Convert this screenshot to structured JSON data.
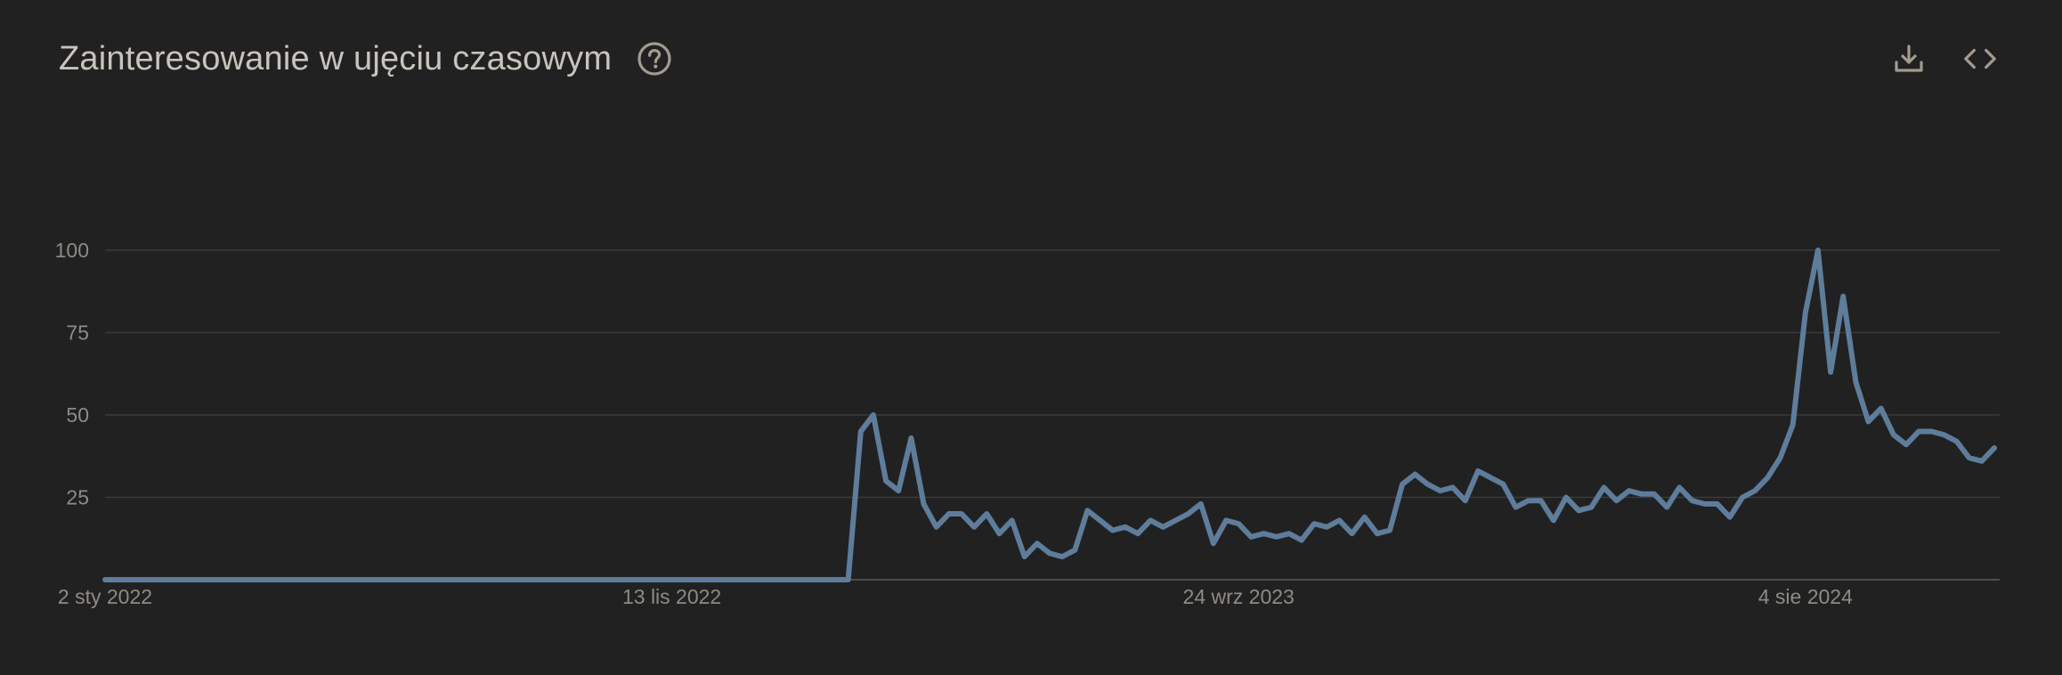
{
  "header": {
    "title": "Zainteresowanie w ujęciu czasowym",
    "help_icon": "help-circle-icon",
    "download_icon": "download-icon",
    "embed_icon": "code-icon"
  },
  "colors": {
    "background": "#212121",
    "line": "#5e7d9b",
    "grid": "#3a3a3a",
    "text": "#c8c3bc",
    "axis_text": "#8f8a84"
  },
  "chart_data": {
    "type": "line",
    "title": "Zainteresowanie w ujęciu czasowym",
    "xlabel": "",
    "ylabel": "",
    "ylim": [
      0,
      100
    ],
    "yticks": [
      100,
      75,
      50,
      25
    ],
    "x_tick_labels": [
      {
        "label": "2 sty 2022",
        "index": 0
      },
      {
        "label": "13 lis 2022",
        "index": 45
      },
      {
        "label": "24 wrz 2023",
        "index": 90
      },
      {
        "label": "4 sie 2024",
        "index": 135
      }
    ],
    "grid": true,
    "series": [
      {
        "values": [
          0,
          0,
          0,
          0,
          0,
          0,
          0,
          0,
          0,
          0,
          0,
          0,
          0,
          0,
          0,
          0,
          0,
          0,
          0,
          0,
          0,
          0,
          0,
          0,
          0,
          0,
          0,
          0,
          0,
          0,
          0,
          0,
          0,
          0,
          0,
          0,
          0,
          0,
          0,
          0,
          0,
          0,
          0,
          0,
          0,
          0,
          0,
          0,
          0,
          0,
          0,
          0,
          0,
          0,
          0,
          0,
          0,
          0,
          0,
          0,
          45,
          50,
          30,
          27,
          43,
          23,
          16,
          20,
          20,
          16,
          20,
          14,
          18,
          7,
          11,
          8,
          7,
          9,
          21,
          18,
          15,
          16,
          14,
          18,
          16,
          18,
          20,
          23,
          11,
          18,
          17,
          13,
          14,
          13,
          14,
          12,
          17,
          16,
          18,
          14,
          19,
          14,
          15,
          29,
          32,
          29,
          27,
          28,
          24,
          33,
          31,
          29,
          22,
          24,
          24,
          18,
          25,
          21,
          22,
          28,
          24,
          27,
          26,
          26,
          22,
          28,
          24,
          23,
          23,
          19,
          25,
          27,
          31,
          37,
          47,
          81,
          100,
          63,
          86,
          60,
          48,
          52,
          44,
          41,
          45,
          45,
          44,
          42,
          37,
          36,
          40
        ]
      }
    ]
  }
}
